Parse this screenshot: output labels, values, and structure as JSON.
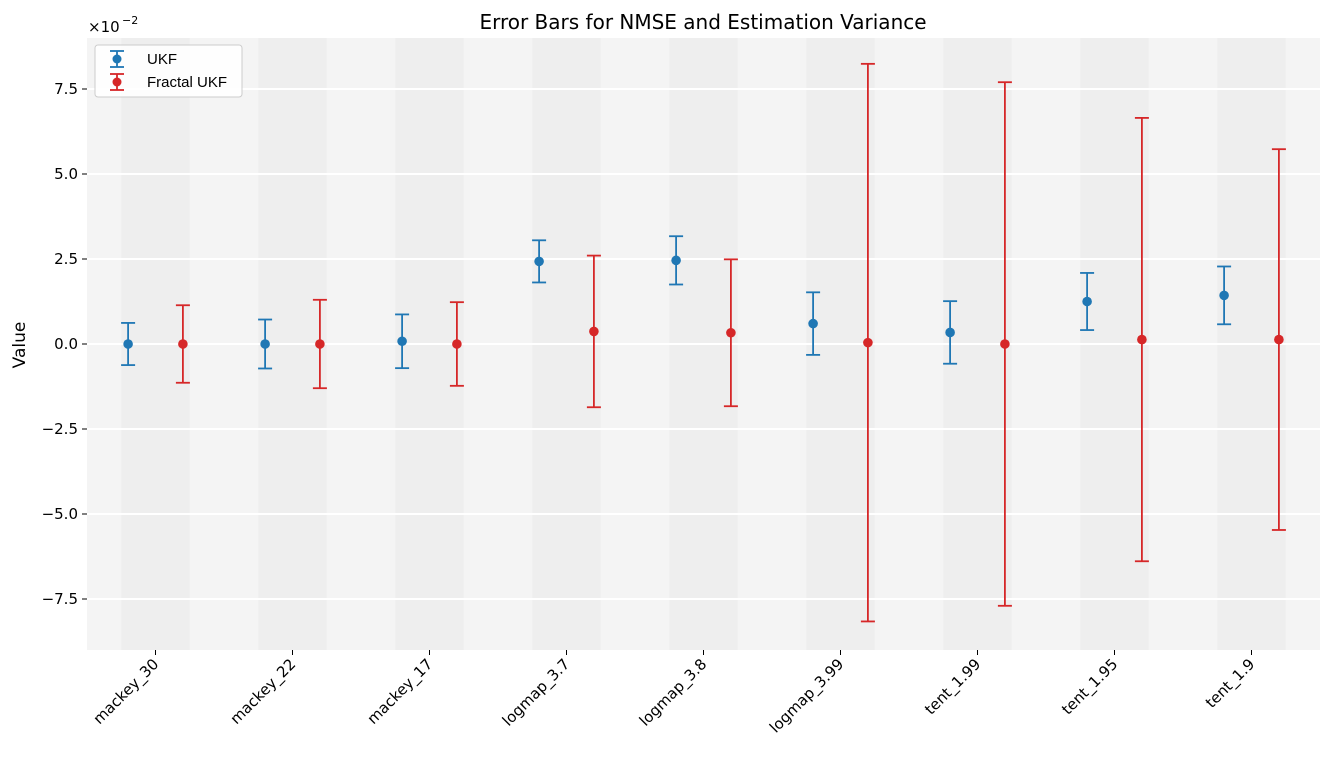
{
  "chart_data": {
    "type": "errorbar",
    "title": "Error Bars for NMSE and Estimation Variance",
    "xlabel": "",
    "ylabel": "Value",
    "scale_label": "×10",
    "scale_exponent": "−2",
    "ylim": [
      -9.0,
      9.0
    ],
    "yticks": [
      -7.5,
      -5.0,
      -2.5,
      0.0,
      2.5,
      5.0,
      7.5
    ],
    "ytick_labels": [
      "−7.5",
      "−5.0",
      "−2.5",
      "0.0",
      "2.5",
      "5.0",
      "7.5"
    ],
    "categories": [
      "mackey_30",
      "mackey_22",
      "mackey_17",
      "logmap_3.7",
      "logmap_3.8",
      "logmap_3.99",
      "tent_1.99",
      "tent_1.95",
      "tent_1.9"
    ],
    "grid": "horizontal",
    "legend_position": "top-left",
    "series": [
      {
        "name": "UKF",
        "color": "#1f77b4",
        "values": [
          0.0,
          0.0,
          0.08,
          2.43,
          2.46,
          0.6,
          0.34,
          1.25,
          1.43
        ],
        "errors": [
          0.62,
          0.72,
          0.79,
          0.62,
          0.71,
          0.92,
          0.92,
          0.84,
          0.85
        ]
      },
      {
        "name": "Fractal UKF",
        "color": "#d62728",
        "values": [
          0.0,
          0.0,
          0.0,
          0.37,
          0.33,
          0.04,
          0.0,
          0.13,
          0.13
        ],
        "errors": [
          1.14,
          1.3,
          1.23,
          2.23,
          2.16,
          8.2,
          7.7,
          6.52,
          5.6
        ]
      }
    ]
  }
}
